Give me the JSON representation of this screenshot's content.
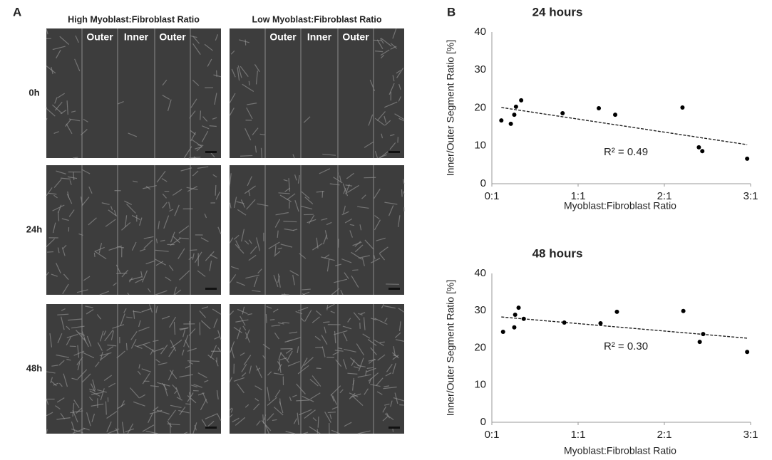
{
  "panel_a": {
    "label": "A",
    "column_titles": [
      "High Myoblast:Fibroblast Ratio",
      "Low Myoblast:Fibroblast Ratio"
    ],
    "row_labels": [
      "0h",
      "24h",
      "48h"
    ],
    "segment_labels": [
      [
        "Outer",
        "Inner",
        "Outer"
      ],
      [
        "Outer",
        "Inner",
        "Outer"
      ]
    ]
  },
  "panel_b": {
    "label": "B"
  },
  "chart_data": [
    {
      "type": "scatter",
      "title": "24 hours",
      "x_label": "Myoblast:Fibroblast Ratio",
      "y_label": "Inner/Outer Segment Ratio [%]",
      "annotation": "R² = 0.49",
      "color": "#000000",
      "x": [
        0.11,
        0.22,
        0.26,
        0.28,
        0.34,
        0.82,
        1.24,
        1.43,
        2.21,
        2.4,
        2.44,
        2.96
      ],
      "values": [
        16.7,
        15.8,
        18.2,
        20.3,
        22.0,
        18.6,
        19.9,
        18.2,
        20.1,
        9.6,
        8.6,
        6.6
      ],
      "trendline": {
        "x": [
          0.11,
          2.96
        ],
        "values": [
          20.1,
          10.3
        ]
      },
      "xlim": [
        0,
        3
      ],
      "ylim": [
        0,
        40
      ],
      "xticks": [
        {
          "value": 0,
          "label": "0:1"
        },
        {
          "value": 1,
          "label": "1:1"
        },
        {
          "value": 2,
          "label": "2:1"
        },
        {
          "value": 3,
          "label": "3:1"
        }
      ],
      "yticks": [
        0,
        10,
        20,
        30,
        40
      ],
      "grid": false
    },
    {
      "type": "scatter",
      "title": "48 hours",
      "x_label": "Myoblast:Fibroblast Ratio",
      "y_label": "Inner/Outer Segment Ratio [%]",
      "annotation": "R² = 0.30",
      "color": "#000000",
      "x": [
        0.13,
        0.26,
        0.27,
        0.31,
        0.37,
        0.84,
        1.26,
        1.45,
        2.22,
        2.41,
        2.45,
        2.96
      ],
      "values": [
        24.3,
        25.5,
        28.9,
        30.8,
        27.8,
        26.8,
        26.6,
        29.7,
        29.9,
        21.6,
        23.7,
        18.9
      ],
      "trendline": {
        "x": [
          0.11,
          2.96
        ],
        "values": [
          28.3,
          22.6
        ]
      },
      "xlim": [
        0,
        3
      ],
      "ylim": [
        0,
        40
      ],
      "xticks": [
        {
          "value": 0,
          "label": "0:1"
        },
        {
          "value": 1,
          "label": "1:1"
        },
        {
          "value": 2,
          "label": "2:1"
        },
        {
          "value": 3,
          "label": "3:1"
        }
      ],
      "yticks": [
        0,
        10,
        20,
        30,
        40
      ],
      "grid": false
    }
  ]
}
